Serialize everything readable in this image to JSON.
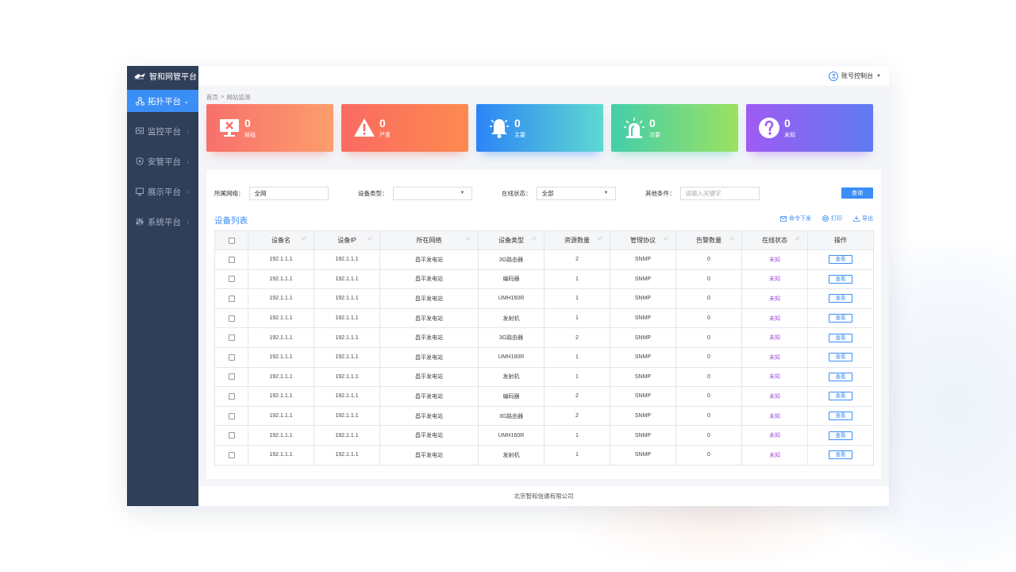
{
  "app": {
    "title": "智和网管平台"
  },
  "sidebar": {
    "items": [
      {
        "label": "拓扑平台",
        "icon": "topology-icon",
        "active": true
      },
      {
        "label": "监控平台",
        "icon": "monitor-icon",
        "active": false
      },
      {
        "label": "安管平台",
        "icon": "shield-icon",
        "active": false
      },
      {
        "label": "展示平台",
        "icon": "display-icon",
        "active": false
      },
      {
        "label": "系统平台",
        "icon": "settings-sliders-icon",
        "active": false
      }
    ]
  },
  "header": {
    "account_label": "账号控制台"
  },
  "breadcrumb": {
    "home": "首页",
    "sep": ">",
    "current": "网站监测"
  },
  "cards": [
    {
      "value": "0",
      "label": "掉线",
      "icon": "offline-monitor-icon"
    },
    {
      "value": "0",
      "label": "严重",
      "icon": "warning-triangle-icon"
    },
    {
      "value": "0",
      "label": "主要",
      "icon": "alarm-bell-icon"
    },
    {
      "value": "0",
      "label": "次要",
      "icon": "siren-light-icon"
    },
    {
      "value": "0",
      "label": "未知",
      "icon": "question-circle-icon"
    }
  ],
  "filters": {
    "network_label": "所属网络：",
    "network_value": "全网",
    "type_label": "设备类型：",
    "type_value": "",
    "online_label": "在线状态：",
    "online_value": "全部",
    "other_label": "其他条件：",
    "other_placeholder": "请输入关键字",
    "search_button": "查询"
  },
  "list": {
    "title": "设备列表",
    "actions": {
      "command": "命令下发",
      "print": "打印",
      "export": "导出"
    },
    "columns": [
      "设备名",
      "设备IP",
      "所在网络",
      "设备类型",
      "资源数量",
      "管理协议",
      "告警数量",
      "在线状态",
      "操作"
    ],
    "rows": [
      {
        "name": "192.1.1.1",
        "ip": "192.1.1.1",
        "network": "昌平发电站",
        "type": "3G路由器",
        "resources": "2",
        "protocol": "SNMP",
        "alarms": "0",
        "status": "未知",
        "action": "查看"
      },
      {
        "name": "192.1.1.1",
        "ip": "192.1.1.1",
        "network": "昌平发电站",
        "type": "编码器",
        "resources": "1",
        "protocol": "SNMP",
        "alarms": "0",
        "status": "未知",
        "action": "查看"
      },
      {
        "name": "192.1.1.1",
        "ip": "192.1.1.1",
        "network": "昌平发电站",
        "type": "UMH160R",
        "resources": "1",
        "protocol": "SNMP",
        "alarms": "0",
        "status": "未知",
        "action": "查看"
      },
      {
        "name": "192.1.1.1",
        "ip": "192.1.1.1",
        "network": "昌平发电站",
        "type": "发射机",
        "resources": "1",
        "protocol": "SNMP",
        "alarms": "0",
        "status": "未知",
        "action": "查看"
      },
      {
        "name": "192.1.1.1",
        "ip": "192.1.1.1",
        "network": "昌平发电站",
        "type": "3G路由器",
        "resources": "2",
        "protocol": "SNMP",
        "alarms": "0",
        "status": "未知",
        "action": "查看"
      },
      {
        "name": "192.1.1.1",
        "ip": "192.1.1.1",
        "network": "昌平发电站",
        "type": "UMH160R",
        "resources": "1",
        "protocol": "SNMP",
        "alarms": "0",
        "status": "未知",
        "action": "查看"
      },
      {
        "name": "192.1.1.1",
        "ip": "192.1.1.1",
        "network": "昌平发电站",
        "type": "发射机",
        "resources": "1",
        "protocol": "SNMP",
        "alarms": "0",
        "status": "未知",
        "action": "查看"
      },
      {
        "name": "192.1.1.1",
        "ip": "192.1.1.1",
        "network": "昌平发电站",
        "type": "编码器",
        "resources": "2",
        "protocol": "SNMP",
        "alarms": "0",
        "status": "未知",
        "action": "查看"
      },
      {
        "name": "192.1.1.1",
        "ip": "192.1.1.1",
        "network": "昌平发电站",
        "type": "3G路由器",
        "resources": "2",
        "protocol": "SNMP",
        "alarms": "0",
        "status": "未知",
        "action": "查看"
      },
      {
        "name": "192.1.1.1",
        "ip": "192.1.1.1",
        "network": "昌平发电站",
        "type": "UMH160R",
        "resources": "1",
        "protocol": "SNMP",
        "alarms": "0",
        "status": "未知",
        "action": "查看"
      },
      {
        "name": "192.1.1.1",
        "ip": "192.1.1.1",
        "network": "昌平发电站",
        "type": "发射机",
        "resources": "1",
        "protocol": "SNMP",
        "alarms": "0",
        "status": "未知",
        "action": "查看"
      }
    ]
  },
  "footer": {
    "company": "北京智和信通有限公司"
  },
  "colors": {
    "accent": "#3a8ef6",
    "sidebar": "#2f3e59",
    "status_unknown": "#a24de4"
  }
}
